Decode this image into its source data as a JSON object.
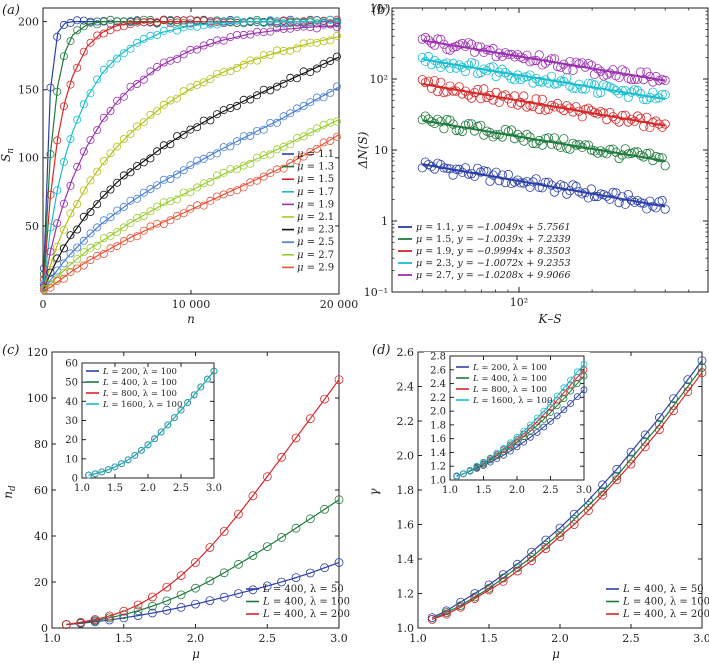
{
  "chart_data": [
    {
      "id": "a",
      "panel_label": "(a)",
      "type": "scatter",
      "xlabel": "n",
      "ylabel": "S_n",
      "ylabel_main": "S",
      "ylabel_sub": "n",
      "xlim": [
        0,
        20000
      ],
      "ylim": [
        0,
        210
      ],
      "xticks": [
        0,
        10000,
        20000
      ],
      "xtick_labels": [
        "0",
        "10 000",
        "20 000"
      ],
      "yticks": [
        50,
        100,
        150,
        200
      ],
      "ytick_labels": [
        "50",
        "100",
        "150",
        "200"
      ],
      "legend_loc": "right",
      "x": [
        0,
        500,
        1000,
        1500,
        2000,
        3000,
        4000,
        5000,
        6000,
        8000,
        10000,
        12000,
        14000,
        16000,
        18000,
        20000
      ],
      "series": [
        {
          "name": "μ = 1.1",
          "mu": "1.1",
          "color": "#2b3fa8",
          "values": [
            2,
            150,
            192,
            199,
            200,
            200,
            200,
            200,
            200,
            200,
            200,
            200,
            200,
            200,
            200,
            200
          ]
        },
        {
          "name": "μ = 1.3",
          "mu": "1.3",
          "color": "#1f7a3c",
          "values": [
            2,
            103,
            153,
            178,
            190,
            198,
            200,
            200,
            200,
            200,
            200,
            200,
            200,
            200,
            200,
            200
          ]
        },
        {
          "name": "μ = 1.5",
          "mu": "1.5",
          "color": "#d62728",
          "values": [
            2,
            72,
            115,
            142,
            160,
            182,
            192,
            197,
            199,
            200,
            200,
            200,
            200,
            200,
            200,
            200
          ]
        },
        {
          "name": "μ = 1.7",
          "mu": "1.7",
          "color": "#17becf",
          "values": [
            2,
            47,
            78,
            101,
            119,
            145,
            162,
            174,
            182,
            192,
            197,
            199,
            200,
            200,
            200,
            200
          ]
        },
        {
          "name": "μ = 1.9",
          "mu": "1.9",
          "color": "#9b30b0",
          "values": [
            2,
            31,
            53,
            70,
            85,
            109,
            127,
            141,
            152,
            168,
            179,
            186,
            191,
            194,
            196,
            197
          ]
        },
        {
          "name": "μ = 2.1",
          "mu": "2.1",
          "color": "#b5c21b",
          "values": [
            2,
            21,
            37,
            50,
            61,
            80,
            95,
            108,
            119,
            137,
            151,
            162,
            171,
            178,
            184,
            189
          ]
        },
        {
          "name": "μ = 2.3",
          "mu": "2.3",
          "color": "#111111",
          "values": [
            2,
            15,
            26,
            36,
            44,
            59,
            71,
            82,
            91,
            107,
            121,
            133,
            144,
            154,
            164,
            174
          ]
        },
        {
          "name": "μ = 2.5",
          "mu": "2.5",
          "color": "#4a7fd4",
          "values": [
            2,
            10,
            18,
            25,
            31,
            42,
            52,
            60,
            68,
            82,
            94,
            106,
            117,
            128,
            140,
            152
          ]
        },
        {
          "name": "μ = 2.7",
          "mu": "2.7",
          "color": "#9acd32",
          "values": [
            2,
            7,
            13,
            18,
            23,
            32,
            39,
            46,
            53,
            65,
            76,
            87,
            97,
            107,
            118,
            128
          ]
        },
        {
          "name": "μ = 2.9",
          "mu": "2.9",
          "color": "#e8553a",
          "values": [
            2,
            5,
            9,
            13,
            17,
            24,
            30,
            36,
            42,
            52,
            62,
            72,
            82,
            92,
            104,
            117
          ]
        }
      ]
    },
    {
      "id": "b",
      "panel_label": "(b)",
      "type": "scatter",
      "scale": "log-log",
      "xlabel": "K–S",
      "ylabel": "ΔN(S)",
      "xlim": [
        30,
        600
      ],
      "ylim": [
        0.1,
        1000
      ],
      "xticks": [
        100
      ],
      "xtick_labels": [
        "10²"
      ],
      "yticks": [
        0.1,
        1,
        10,
        100,
        1000
      ],
      "ytick_labels": [
        "10⁻¹",
        "1",
        "10",
        "10²",
        "10³"
      ],
      "x_range": [
        40,
        400
      ],
      "legend_loc": "bottom-left",
      "series": [
        {
          "name": "μ = 1.1, y = −1.0049x + 5.7561",
          "mu": "1.1",
          "equation": "y = −1.0049x + 5.7561",
          "slope": -1.0049,
          "intercept": 5.7561,
          "y_start": 6.3,
          "y_end": 1.6,
          "color": "#2b3fa8"
        },
        {
          "name": "μ = 1.5, y = −1.0039x + 7.2339",
          "mu": "1.5",
          "equation": "y = −1.0039x + 7.2339",
          "slope": -1.0039,
          "intercept": 7.2339,
          "y_start": 26,
          "y_end": 7,
          "color": "#1f7a3c"
        },
        {
          "name": "μ = 1.9, y = −0.9994x + 8.3503",
          "mu": "1.9",
          "equation": "y = −0.9994x + 8.3503",
          "slope": -0.9994,
          "intercept": 8.3503,
          "y_start": 85,
          "y_end": 22,
          "color": "#d62728"
        },
        {
          "name": "μ = 2.3, y = −1.0072x + 9.2353",
          "mu": "2.3",
          "equation": "y = −1.0072x + 9.2353",
          "slope": -1.0072,
          "intercept": 9.2353,
          "y_start": 190,
          "y_end": 52,
          "color": "#17becf"
        },
        {
          "name": "μ = 2.7, y = −1.0208x + 9.9066",
          "mu": "2.7",
          "equation": "y = −1.0208x + 9.9066",
          "slope": -1.0208,
          "intercept": 9.9066,
          "y_start": 350,
          "y_end": 95,
          "color": "#9b30b0"
        }
      ]
    },
    {
      "id": "c",
      "panel_label": "(c)",
      "type": "line",
      "xlabel": "μ",
      "ylabel": "n_d",
      "ylabel_main": "n",
      "ylabel_sub": "d",
      "xlim": [
        1.0,
        3.0
      ],
      "ylim": [
        0,
        120
      ],
      "xticks": [
        1.0,
        1.5,
        2.0,
        2.5,
        3.0
      ],
      "xtick_labels": [
        "1.0",
        "1.5",
        "2.0",
        "2.5",
        "3.0"
      ],
      "yticks": [
        0,
        20,
        40,
        60,
        80,
        100,
        120
      ],
      "ytick_labels": [
        "0",
        "20",
        "40",
        "60",
        "80",
        "100",
        "120"
      ],
      "legend_loc": "bottom-right",
      "x": [
        1.1,
        1.2,
        1.3,
        1.4,
        1.5,
        1.6,
        1.7,
        1.8,
        1.9,
        2.0,
        2.1,
        2.2,
        2.3,
        2.4,
        2.5,
        2.6,
        2.7,
        2.8,
        2.9,
        3.0
      ],
      "series": [
        {
          "name": "L = 400, λ = 50",
          "L": "400",
          "lambda": "50",
          "color": "#2b3fa8",
          "values": [
            1.5,
            2.0,
            2.7,
            3.5,
            4.4,
            5.4,
            6.5,
            7.7,
            9.0,
            10.4,
            11.9,
            13.4,
            15.0,
            16.6,
            18.3,
            20.0,
            21.9,
            23.9,
            26.2,
            28.5
          ]
        },
        {
          "name": "L = 400, λ = 100",
          "L": "400",
          "lambda": "100",
          "color": "#1f7a3c",
          "values": [
            1.5,
            2.2,
            3.2,
            4.4,
            5.8,
            7.5,
            9.5,
            11.8,
            14.4,
            17.3,
            20.5,
            24.0,
            27.7,
            31.5,
            35.4,
            39.4,
            43.4,
            47.5,
            51.6,
            55.8
          ]
        },
        {
          "name": "L = 400, λ = 200",
          "L": "400",
          "lambda": "200",
          "color": "#d62728",
          "values": [
            1.5,
            2.5,
            3.7,
            5.2,
            7.3,
            10.0,
            13.5,
            17.8,
            22.8,
            28.5,
            35.0,
            42.0,
            49.5,
            57.5,
            65.8,
            74.2,
            82.6,
            91.0,
            99.5,
            108.0
          ]
        }
      ],
      "inset": {
        "type": "line",
        "xlim": [
          1.0,
          3.0
        ],
        "ylim": [
          0,
          60
        ],
        "xticks": [
          1.0,
          1.5,
          2.0,
          2.5,
          3.0
        ],
        "xtick_labels": [
          "1.0",
          "1.5",
          "2.0",
          "2.5",
          "3.0"
        ],
        "yticks": [
          0,
          10,
          20,
          30,
          40,
          50,
          60
        ],
        "ytick_labels": [
          "0",
          "10",
          "20",
          "30",
          "40",
          "50",
          "60"
        ],
        "legend_loc": "top-left",
        "x": [
          1.1,
          1.2,
          1.3,
          1.4,
          1.5,
          1.6,
          1.7,
          1.8,
          1.9,
          2.0,
          2.1,
          2.2,
          2.3,
          2.4,
          2.5,
          2.6,
          2.7,
          2.8,
          2.9,
          3.0
        ],
        "series": [
          {
            "name": "L = 200, λ = 100",
            "L": "200",
            "lambda": "100",
            "color": "#2b3fa8",
            "values": [
              1.5,
              2.2,
              3.2,
              4.4,
              5.8,
              7.5,
              9.5,
              11.8,
              14.4,
              17.3,
              20.5,
              24.0,
              27.7,
              31.5,
              35.4,
              39.4,
              43.4,
              47.5,
              51.6,
              55.8
            ]
          },
          {
            "name": "L = 400, λ = 100",
            "L": "400",
            "lambda": "100",
            "color": "#1f7a3c",
            "values": [
              1.5,
              2.2,
              3.2,
              4.4,
              5.8,
              7.5,
              9.5,
              11.8,
              14.4,
              17.3,
              20.5,
              24.0,
              27.7,
              31.5,
              35.4,
              39.4,
              43.4,
              47.5,
              51.6,
              55.8
            ]
          },
          {
            "name": "L = 800, λ = 100",
            "L": "800",
            "lambda": "100",
            "color": "#d62728",
            "values": [
              1.5,
              2.2,
              3.2,
              4.4,
              5.8,
              7.5,
              9.5,
              11.8,
              14.4,
              17.3,
              20.5,
              24.0,
              27.7,
              31.5,
              35.4,
              39.4,
              43.4,
              47.5,
              51.6,
              55.8
            ]
          },
          {
            "name": "L = 1600, λ = 100",
            "L": "1600",
            "lambda": "100",
            "color": "#17becf",
            "values": [
              1.5,
              2.2,
              3.2,
              4.4,
              5.8,
              7.5,
              9.5,
              11.8,
              14.4,
              17.3,
              20.5,
              24.0,
              27.7,
              31.5,
              35.4,
              39.4,
              43.4,
              47.5,
              51.6,
              55.8
            ]
          }
        ]
      }
    },
    {
      "id": "d",
      "panel_label": "(d)",
      "type": "line",
      "xlabel": "μ",
      "ylabel": "γ",
      "xlim": [
        1.0,
        3.0
      ],
      "ylim": [
        1.0,
        2.6
      ],
      "xticks": [
        1.0,
        1.5,
        2.0,
        2.5,
        3.0
      ],
      "xtick_labels": [
        "1.0",
        "1.5",
        "2.0",
        "2.5",
        "3.0"
      ],
      "yticks": [
        1.0,
        1.2,
        1.4,
        1.6,
        1.8,
        2.0,
        2.2,
        2.4,
        2.6
      ],
      "ytick_labels": [
        "1.0",
        "1.2",
        "1.4",
        "1.6",
        "1.8",
        "2.0",
        "2.2",
        "2.4",
        "2.6"
      ],
      "legend_loc": "bottom-right",
      "x": [
        1.1,
        1.2,
        1.3,
        1.4,
        1.5,
        1.6,
        1.7,
        1.8,
        1.9,
        2.0,
        2.1,
        2.2,
        2.3,
        2.4,
        2.5,
        2.6,
        2.7,
        2.8,
        2.9,
        3.0
      ],
      "series": [
        {
          "name": "L = 400, λ = 50",
          "L": "400",
          "lambda": "50",
          "color": "#2b3fa8",
          "values": [
            1.06,
            1.1,
            1.15,
            1.2,
            1.25,
            1.31,
            1.37,
            1.44,
            1.51,
            1.58,
            1.66,
            1.74,
            1.83,
            1.92,
            2.02,
            2.12,
            2.22,
            2.33,
            2.44,
            2.55
          ]
        },
        {
          "name": "L = 400, λ = 100",
          "L": "400",
          "lambda": "100",
          "color": "#1f7a3c",
          "values": [
            1.05,
            1.09,
            1.13,
            1.18,
            1.23,
            1.29,
            1.35,
            1.41,
            1.48,
            1.55,
            1.63,
            1.71,
            1.79,
            1.88,
            1.98,
            2.08,
            2.18,
            2.29,
            2.4,
            2.51
          ]
        },
        {
          "name": "L = 400, λ = 200",
          "L": "400",
          "lambda": "200",
          "color": "#d62728",
          "values": [
            1.05,
            1.08,
            1.12,
            1.17,
            1.22,
            1.27,
            1.33,
            1.39,
            1.46,
            1.53,
            1.6,
            1.68,
            1.77,
            1.86,
            1.95,
            2.05,
            2.15,
            2.26,
            2.37,
            2.48
          ]
        }
      ],
      "inset": {
        "type": "line",
        "xlim": [
          1.0,
          3.0
        ],
        "ylim": [
          1.0,
          2.8
        ],
        "xticks": [
          1.0,
          1.5,
          2.0,
          2.5,
          3.0
        ],
        "xtick_labels": [
          "1.0",
          "1.5",
          "2.0",
          "2.5",
          "3.0"
        ],
        "yticks": [
          1.0,
          1.2,
          1.4,
          1.6,
          1.8,
          2.0,
          2.2,
          2.4,
          2.6,
          2.8
        ],
        "ytick_labels": [
          "1.0",
          "1.2",
          "1.4",
          "1.6",
          "1.8",
          "2.0",
          "2.2",
          "2.4",
          "2.6",
          "2.8"
        ],
        "legend_loc": "top-left",
        "x": [
          1.1,
          1.2,
          1.3,
          1.4,
          1.5,
          1.6,
          1.7,
          1.8,
          1.9,
          2.0,
          2.1,
          2.2,
          2.3,
          2.4,
          2.5,
          2.6,
          2.7,
          2.8,
          2.9,
          3.0
        ],
        "series": [
          {
            "name": "L = 200, λ = 100",
            "L": "200",
            "lambda": "100",
            "color": "#2b3fa8",
            "values": [
              1.06,
              1.09,
              1.13,
              1.17,
              1.21,
              1.26,
              1.31,
              1.36,
              1.42,
              1.48,
              1.55,
              1.62,
              1.69,
              1.77,
              1.85,
              1.93,
              2.02,
              2.11,
              2.21,
              2.31
            ]
          },
          {
            "name": "L = 400, λ = 100",
            "L": "400",
            "lambda": "100",
            "color": "#1f7a3c",
            "values": [
              1.05,
              1.09,
              1.13,
              1.18,
              1.23,
              1.29,
              1.35,
              1.41,
              1.48,
              1.55,
              1.63,
              1.71,
              1.79,
              1.88,
              1.98,
              2.08,
              2.18,
              2.29,
              2.4,
              2.51
            ]
          },
          {
            "name": "L = 800, λ = 100",
            "L": "800",
            "lambda": "100",
            "color": "#d62728",
            "values": [
              1.05,
              1.09,
              1.14,
              1.19,
              1.25,
              1.31,
              1.37,
              1.44,
              1.51,
              1.59,
              1.67,
              1.76,
              1.85,
              1.95,
              2.05,
              2.16,
              2.27,
              2.38,
              2.49,
              2.6
            ]
          },
          {
            "name": "L = 1600, λ = 100",
            "L": "1600",
            "lambda": "100",
            "color": "#17becf",
            "values": [
              1.05,
              1.09,
              1.14,
              1.2,
              1.26,
              1.32,
              1.39,
              1.46,
              1.54,
              1.62,
              1.71,
              1.8,
              1.9,
              2.0,
              2.11,
              2.22,
              2.34,
              2.45,
              2.57,
              2.68
            ]
          }
        ]
      }
    }
  ]
}
